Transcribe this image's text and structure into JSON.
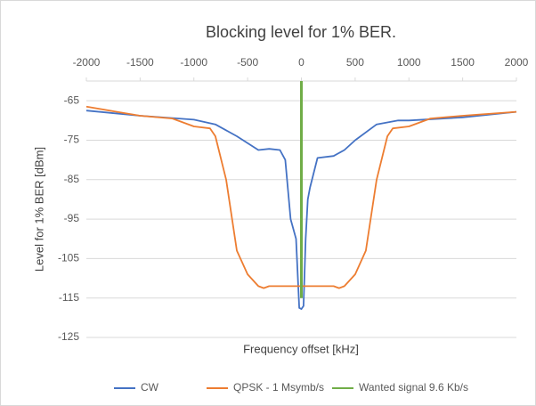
{
  "chart_data": {
    "type": "line",
    "title": "Blocking level for 1% BER.",
    "x_label": "Frequency offset [kHz]",
    "y_label": "Level for 1% BER [dBm]",
    "xlim": [
      -2000,
      2000
    ],
    "xticks": [
      -2000,
      -1500,
      -1000,
      -500,
      0,
      500,
      1000,
      1500,
      2000
    ],
    "ylim": [
      -125,
      -60
    ],
    "yticks": [
      -65,
      -75,
      -85,
      -95,
      -105,
      -115,
      -125
    ],
    "grid": true,
    "legend": "bottom",
    "series": [
      {
        "name": "CW",
        "color": "#4472c4",
        "x": [
          -2000,
          -1500,
          -1000,
          -800,
          -600,
          -400,
          -300,
          -200,
          -150,
          -100,
          -50,
          -20,
          0,
          20,
          40,
          60,
          80,
          150,
          300,
          400,
          500,
          700,
          900,
          1000,
          1500,
          2000
        ],
        "values": [
          -67.5,
          -68.8,
          -69.8,
          -71,
          -74,
          -77.5,
          -77.2,
          -77.5,
          -80,
          -95,
          -100,
          -117.5,
          -117.8,
          -117,
          -100,
          -90,
          -87,
          -79.5,
          -79,
          -77.5,
          -75,
          -71,
          -70,
          -70,
          -69.2,
          -67.8
        ]
      },
      {
        "name": "QPSK - 1 Msymb/s",
        "color": "#ed7d31",
        "x": [
          -2000,
          -1500,
          -1200,
          -1000,
          -850,
          -800,
          -700,
          -600,
          -500,
          -400,
          -350,
          -300,
          0,
          300,
          350,
          400,
          500,
          600,
          700,
          800,
          850,
          1000,
          1200,
          1500,
          2000
        ],
        "values": [
          -66.5,
          -68.8,
          -69.5,
          -71.5,
          -72,
          -74,
          -85,
          -103,
          -109,
          -112,
          -112.5,
          -112,
          -112,
          -112,
          -112.5,
          -112,
          -109,
          -103,
          -85,
          -74,
          -72,
          -71.5,
          -69.5,
          -68.8,
          -67.8
        ]
      },
      {
        "name": "Wanted signal 9.6 Kb/s",
        "color": "#70ad47",
        "x": [
          0,
          0
        ],
        "values": [
          -60,
          -115
        ]
      }
    ]
  }
}
